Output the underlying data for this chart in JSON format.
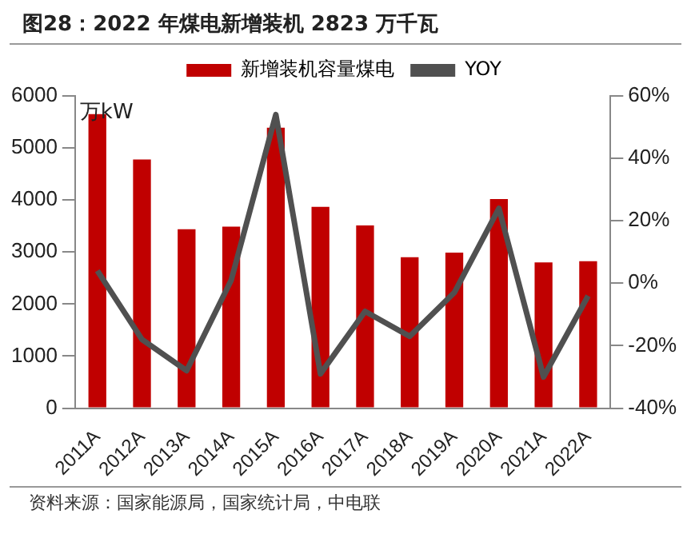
{
  "chart_data": {
    "type": "bar",
    "title": "图28：2022 年煤电新增装机 2823 万千瓦",
    "ylabel": "万kW",
    "categories": [
      "2011A",
      "2012A",
      "2013A",
      "2014A",
      "2015A",
      "2016A",
      "2017A",
      "2018A",
      "2019A",
      "2020A",
      "2021A",
      "2022A"
    ],
    "series": [
      {
        "name": "新增装机容量煤电",
        "color": "#c00000",
        "values": [
          5650,
          4780,
          3440,
          3490,
          5390,
          3870,
          3510,
          2900,
          2990,
          4020,
          2800,
          2823
        ]
      },
      {
        "name": "YOY",
        "type": "line",
        "axis": "y2",
        "color": "#505050",
        "values": [
          4,
          -18,
          -28,
          1,
          54,
          -29,
          -9,
          -17,
          -3,
          24,
          -30,
          -4
        ]
      }
    ],
    "ylim": [
      0,
      6000
    ],
    "yticks": [
      0,
      1000,
      2000,
      3000,
      4000,
      5000,
      6000
    ],
    "y2lim": [
      -40,
      60
    ],
    "y2ticks": [
      {
        "value": -40,
        "label": "-40%"
      },
      {
        "value": -20,
        "label": "-20%"
      },
      {
        "value": 0,
        "label": "0%"
      },
      {
        "value": 20,
        "label": "20%"
      },
      {
        "value": 40,
        "label": "40%"
      },
      {
        "value": 60,
        "label": "60%"
      }
    ],
    "legend": "top",
    "grid": false,
    "marker": "none",
    "annotations": [
      "资料来源：国家能源局，国家统计局，中电联"
    ]
  }
}
